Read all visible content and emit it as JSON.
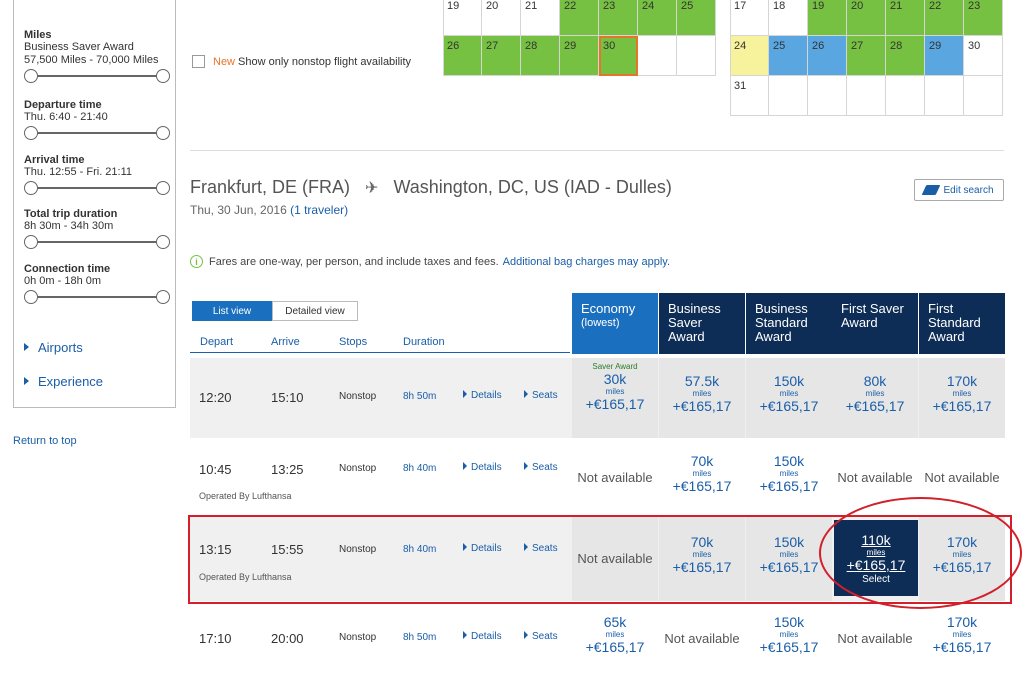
{
  "sidebar": {
    "filters": [
      {
        "title": "Miles",
        "sub1": "Business Saver Award",
        "sub2": "57,500 Miles - 70,000 Miles"
      },
      {
        "title": "Departure time",
        "sub1": "Thu. 6:40 - 21:40"
      },
      {
        "title": "Arrival time",
        "sub1": "Thu. 12:55 - Fri. 21:11"
      },
      {
        "title": "Total trip duration",
        "sub1": "8h 30m - 34h 30m"
      },
      {
        "title": "Connection time",
        "sub1": "0h 0m - 18h 0m"
      }
    ],
    "airports": "Airports",
    "experience": "Experience",
    "return_top": "Return to top"
  },
  "nonstop": {
    "new": "New",
    "label": "Show only nonstop flight availability"
  },
  "calendar_left": {
    "row1": [
      "19",
      "20",
      "21",
      "22",
      "23",
      "24",
      "25"
    ],
    "row2": [
      "26",
      "27",
      "28",
      "29",
      "30",
      "",
      ""
    ]
  },
  "calendar_right": {
    "row1": [
      "17",
      "18",
      "19",
      "20",
      "21",
      "22",
      "23"
    ],
    "row2": [
      "24",
      "25",
      "26",
      "27",
      "28",
      "29",
      "30"
    ],
    "row3": [
      "31",
      "",
      "",
      "",
      "",
      "",
      ""
    ]
  },
  "route": {
    "origin": "Frankfurt, DE (FRA)",
    "destination": "Washington, DC, US (IAD - Dulles)",
    "date": "Thu, 30 Jun, 2016",
    "travelers": "(1 traveler)",
    "edit_search": "Edit search"
  },
  "fares_note": {
    "bold": "Fares are one-way,",
    "text": "per person, and include taxes and fees.",
    "link": "Additional bag charges may apply."
  },
  "view": {
    "list": "List view",
    "detailed": "Detailed view"
  },
  "columns": {
    "depart": "Depart",
    "arrive": "Arrive",
    "stops": "Stops",
    "duration": "Duration"
  },
  "fare_headers": [
    {
      "line1": "Economy",
      "line2": "(lowest)"
    },
    {
      "line1": "Business",
      "line2": "Saver",
      "line3": "Award"
    },
    {
      "line1": "Business",
      "line2": "Standard",
      "line3": "Award"
    },
    {
      "line1": "First Saver",
      "line2": "Award"
    },
    {
      "line1": "First",
      "line2": "Standard",
      "line3": "Award"
    }
  ],
  "rows": [
    {
      "depart": "12:20",
      "arrive": "15:10",
      "stops": "Nonstop",
      "duration": "8h 50m",
      "details": "Details",
      "seats": "Seats",
      "operated": "",
      "fares": [
        {
          "tag": "Saver Award",
          "miles": "30k",
          "unit": "miles",
          "price": "+€165,17"
        },
        {
          "miles": "57.5k",
          "unit": "miles",
          "price": "+€165,17"
        },
        {
          "miles": "150k",
          "unit": "miles",
          "price": "+€165,17"
        },
        {
          "miles": "80k",
          "unit": "miles",
          "price": "+€165,17"
        },
        {
          "miles": "170k",
          "unit": "miles",
          "price": "+€165,17"
        }
      ]
    },
    {
      "depart": "10:45",
      "arrive": "13:25",
      "stops": "Nonstop",
      "duration": "8h 40m",
      "details": "Details",
      "seats": "Seats",
      "operated": "Operated By Lufthansa",
      "fares": [
        {
          "na": "Not available"
        },
        {
          "miles": "70k",
          "unit": "miles",
          "price": "+€165,17"
        },
        {
          "miles": "150k",
          "unit": "miles",
          "price": "+€165,17"
        },
        {
          "na": "Not available"
        },
        {
          "na": "Not available"
        }
      ]
    },
    {
      "depart": "13:15",
      "arrive": "15:55",
      "stops": "Nonstop",
      "duration": "8h 40m",
      "details": "Details",
      "seats": "Seats",
      "operated": "Operated By Lufthansa",
      "fares": [
        {
          "na": "Not available"
        },
        {
          "miles": "70k",
          "unit": "miles",
          "price": "+€165,17"
        },
        {
          "miles": "150k",
          "unit": "miles",
          "price": "+€165,17"
        },
        {
          "miles": "110k",
          "unit": "miles",
          "price": "+€165,17",
          "select": "Select"
        },
        {
          "miles": "170k",
          "unit": "miles",
          "price": "+€165,17"
        }
      ]
    },
    {
      "depart": "17:10",
      "arrive": "20:00",
      "stops": "Nonstop",
      "duration": "8h 50m",
      "details": "Details",
      "seats": "Seats",
      "operated": "",
      "fares": [
        {
          "miles": "65k",
          "unit": "miles",
          "price": "+€165,17"
        },
        {
          "na": "Not available"
        },
        {
          "miles": "150k",
          "unit": "miles",
          "price": "+€165,17"
        },
        {
          "na": "Not available"
        },
        {
          "miles": "170k",
          "unit": "miles",
          "price": "+€165,17"
        }
      ]
    }
  ]
}
